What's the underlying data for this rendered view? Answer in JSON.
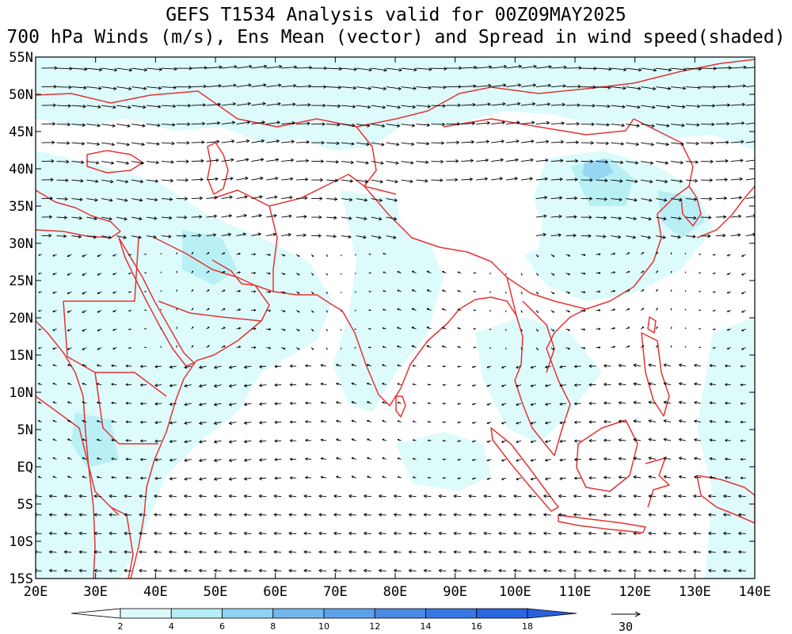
{
  "title_line1": "GEFS T1534 Analysis valid for 00Z09MAY2025",
  "title_line2": "700 hPa Winds (m/s), Ens Mean (vector) and Spread in wind speed(shaded)",
  "lon_labels": [
    "20E",
    "30E",
    "40E",
    "50E",
    "60E",
    "70E",
    "80E",
    "90E",
    "100E",
    "110E",
    "120E",
    "130E",
    "140E"
  ],
  "lat_labels": [
    "55N",
    "50N",
    "45N",
    "40N",
    "35N",
    "30N",
    "25N",
    "20N",
    "15N",
    "10N",
    "5N",
    "EQ",
    "5S",
    "10S",
    "15S"
  ],
  "colorbar": {
    "tick_labels": [
      "2",
      "4",
      "6",
      "8",
      "10",
      "12",
      "14",
      "16",
      "18"
    ],
    "colors": [
      "#ffffff",
      "#ddfbfb",
      "#b5eef5",
      "#90d2f2",
      "#72b8ef",
      "#5da2ec",
      "#4a8ae6",
      "#3877e3",
      "#2a66e0",
      "#2a60df"
    ]
  },
  "reference_vector": {
    "label": "30"
  },
  "colors": {
    "coastline": "#e63232",
    "frame": "#000000",
    "arrow": "#000000"
  }
}
